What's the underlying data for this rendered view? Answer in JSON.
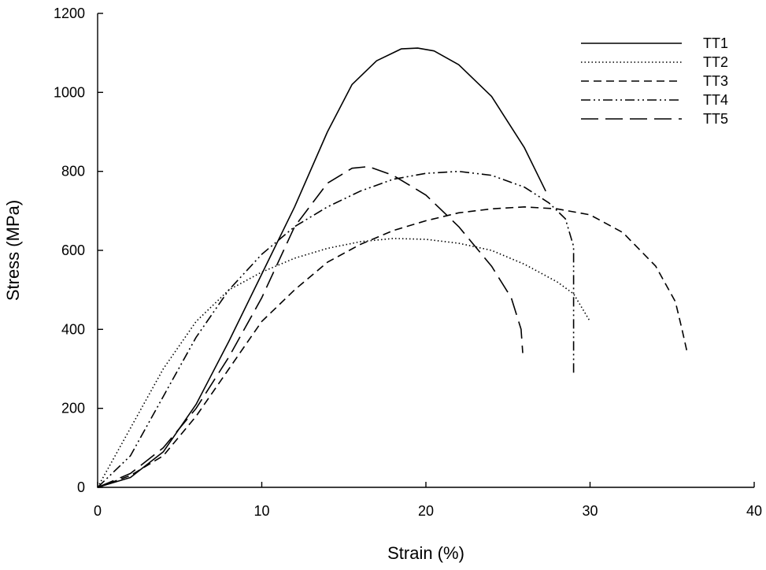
{
  "chart_data": {
    "type": "line",
    "title": "",
    "xlabel": "Strain (%)",
    "ylabel": "Stress (MPa)",
    "xlim": [
      0,
      40
    ],
    "ylim": [
      0,
      1200
    ],
    "xticks": [
      0,
      10,
      20,
      30,
      40
    ],
    "yticks": [
      0,
      200,
      400,
      600,
      800,
      1000,
      1200
    ],
    "grid": false,
    "legend_position": "top-right",
    "series": [
      {
        "name": "TT1",
        "dash": "solid",
        "points": [
          [
            0,
            0
          ],
          [
            2,
            25
          ],
          [
            4,
            90
          ],
          [
            6,
            210
          ],
          [
            8,
            370
          ],
          [
            10,
            540
          ],
          [
            12,
            710
          ],
          [
            14,
            900
          ],
          [
            15.5,
            1020
          ],
          [
            17,
            1080
          ],
          [
            18.5,
            1110
          ],
          [
            19.5,
            1112
          ],
          [
            20.5,
            1105
          ],
          [
            22,
            1070
          ],
          [
            24,
            990
          ],
          [
            26,
            860
          ],
          [
            27.3,
            750
          ]
        ]
      },
      {
        "name": "TT2",
        "dash": "dotted",
        "points": [
          [
            0,
            0
          ],
          [
            2,
            150
          ],
          [
            4,
            300
          ],
          [
            6,
            420
          ],
          [
            8,
            500
          ],
          [
            10,
            545
          ],
          [
            12,
            580
          ],
          [
            14,
            605
          ],
          [
            16,
            622
          ],
          [
            18,
            630
          ],
          [
            20,
            628
          ],
          [
            22,
            618
          ],
          [
            24,
            600
          ],
          [
            26,
            565
          ],
          [
            28,
            520
          ],
          [
            29,
            490
          ],
          [
            30,
            420
          ]
        ]
      },
      {
        "name": "TT3",
        "dash": "dashed",
        "points": [
          [
            0,
            0
          ],
          [
            2,
            30
          ],
          [
            4,
            80
          ],
          [
            6,
            180
          ],
          [
            8,
            300
          ],
          [
            10,
            420
          ],
          [
            12,
            500
          ],
          [
            14,
            570
          ],
          [
            16,
            615
          ],
          [
            18,
            650
          ],
          [
            20,
            675
          ],
          [
            22,
            695
          ],
          [
            24,
            705
          ],
          [
            26,
            710
          ],
          [
            28,
            705
          ],
          [
            30,
            690
          ],
          [
            32,
            645
          ],
          [
            34,
            560
          ],
          [
            35.2,
            470
          ],
          [
            35.6,
            400
          ],
          [
            35.9,
            345
          ]
        ]
      },
      {
        "name": "TT4",
        "dash": "dash-dot-dot",
        "points": [
          [
            0,
            0
          ],
          [
            2,
            80
          ],
          [
            4,
            230
          ],
          [
            6,
            380
          ],
          [
            8,
            500
          ],
          [
            10,
            590
          ],
          [
            12,
            660
          ],
          [
            14,
            710
          ],
          [
            16,
            750
          ],
          [
            18,
            780
          ],
          [
            20,
            795
          ],
          [
            22,
            800
          ],
          [
            24,
            790
          ],
          [
            26,
            760
          ],
          [
            27.5,
            720
          ],
          [
            28.5,
            680
          ],
          [
            29,
            610
          ],
          [
            29,
            450
          ],
          [
            29,
            290
          ]
        ]
      },
      {
        "name": "TT5",
        "dash": "long-dash",
        "points": [
          [
            0,
            0
          ],
          [
            2,
            35
          ],
          [
            4,
            100
          ],
          [
            6,
            200
          ],
          [
            8,
            330
          ],
          [
            10,
            480
          ],
          [
            12,
            660
          ],
          [
            14,
            770
          ],
          [
            15.5,
            808
          ],
          [
            16.5,
            812
          ],
          [
            18,
            790
          ],
          [
            20,
            740
          ],
          [
            22,
            660
          ],
          [
            24,
            560
          ],
          [
            25.2,
            480
          ],
          [
            25.8,
            400
          ],
          [
            25.9,
            340
          ]
        ]
      }
    ]
  }
}
